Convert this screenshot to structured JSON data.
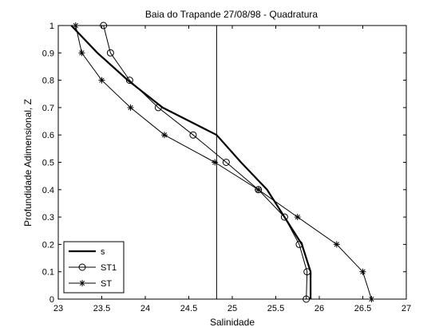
{
  "chart_data": {
    "type": "line",
    "title": "Baia do Trapande  27/08/98 - Quadratura",
    "xlabel": "Salinidade",
    "ylabel": "Profundidade Adimensional, Z",
    "xlim": [
      23,
      27
    ],
    "ylim": [
      0,
      1
    ],
    "x_ticks": [
      "23",
      "23.5",
      "24",
      "24.5",
      "25",
      "25.5",
      "26",
      "26.5",
      "27"
    ],
    "y_ticks": [
      "0",
      "0.1",
      "0.2",
      "0.3",
      "0.4",
      "0.5",
      "0.6",
      "0.7",
      "0.8",
      "0.9",
      "1"
    ],
    "grid": false,
    "legend_position": "bottom-left",
    "vertical_line_x": 24.82,
    "series": [
      {
        "name": "s",
        "style": "thick-line",
        "x": [
          23.15,
          23.45,
          23.8,
          24.2,
          24.82,
          25.1,
          25.4,
          25.6,
          25.8,
          25.9,
          25.9
        ],
        "y": [
          1.0,
          0.9,
          0.8,
          0.7,
          0.6,
          0.5,
          0.4,
          0.3,
          0.2,
          0.1,
          0.0
        ]
      },
      {
        "name": "ST1",
        "style": "circle",
        "x": [
          23.52,
          23.6,
          23.82,
          24.15,
          24.55,
          24.93,
          25.3,
          25.6,
          25.77,
          25.86,
          25.85
        ],
        "y": [
          1.0,
          0.9,
          0.8,
          0.7,
          0.6,
          0.5,
          0.4,
          0.3,
          0.2,
          0.1,
          0.0
        ]
      },
      {
        "name": "ST",
        "style": "star",
        "x": [
          23.2,
          23.27,
          23.5,
          23.83,
          24.22,
          24.8,
          25.3,
          25.75,
          26.2,
          26.5,
          26.6
        ],
        "y": [
          1.0,
          0.9,
          0.8,
          0.7,
          0.6,
          0.5,
          0.4,
          0.3,
          0.2,
          0.1,
          0.0
        ]
      }
    ]
  }
}
